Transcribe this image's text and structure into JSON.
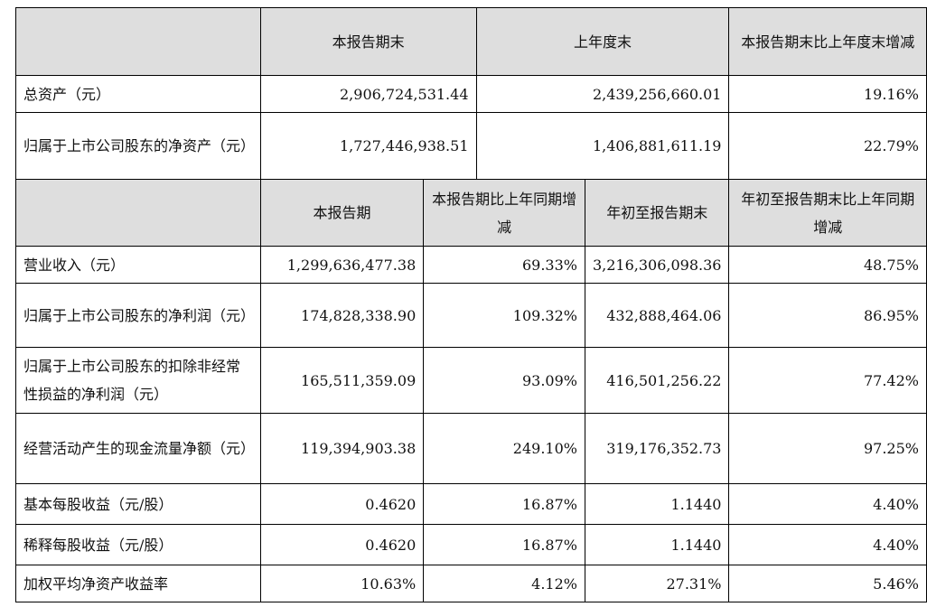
{
  "top_header": {
    "col1": "本报告期末",
    "col2": "上年度末",
    "col3": "本报告期末比上年度末增减"
  },
  "top_rows": [
    {
      "label": "总资产（元）",
      "current": "2,906,724,531.44",
      "prior": "2,439,256,660.01",
      "change": "19.16%"
    },
    {
      "label": "归属于上市公司股东的净资产（元）",
      "current": "1,727,446,938.51",
      "prior": "1,406,881,611.19",
      "change": "22.79%"
    }
  ],
  "bottom_header": {
    "col1": "本报告期",
    "col2": "本报告期比上年同期增减",
    "col3": "年初至报告期末",
    "col4": "年初至报告期末比上年同期增减"
  },
  "bottom_rows": [
    {
      "label": "营业收入（元）",
      "period": "1,299,636,477.38",
      "period_change": "69.33%",
      "ytd": "3,216,306,098.36",
      "ytd_change": "48.75%"
    },
    {
      "label": "归属于上市公司股东的净利润（元）",
      "period": "174,828,338.90",
      "period_change": "109.32%",
      "ytd": "432,888,464.06",
      "ytd_change": "86.95%"
    },
    {
      "label": "归属于上市公司股东的扣除非经常性损益的净利润（元）",
      "period": "165,511,359.09",
      "period_change": "93.09%",
      "ytd": "416,501,256.22",
      "ytd_change": "77.42%"
    },
    {
      "label": "经营活动产生的现金流量净额（元）",
      "period": "119,394,903.38",
      "period_change": "249.10%",
      "ytd": "319,176,352.73",
      "ytd_change": "97.25%"
    },
    {
      "label": "基本每股收益（元/股）",
      "period": "0.4620",
      "period_change": "16.87%",
      "ytd": "1.1440",
      "ytd_change": "4.40%"
    },
    {
      "label": "稀释每股收益（元/股）",
      "period": "0.4620",
      "period_change": "16.87%",
      "ytd": "1.1440",
      "ytd_change": "4.40%"
    },
    {
      "label": "加权平均净资产收益率",
      "period": "10.63%",
      "period_change": "4.12%",
      "ytd": "27.31%",
      "ytd_change": "5.46%"
    }
  ]
}
